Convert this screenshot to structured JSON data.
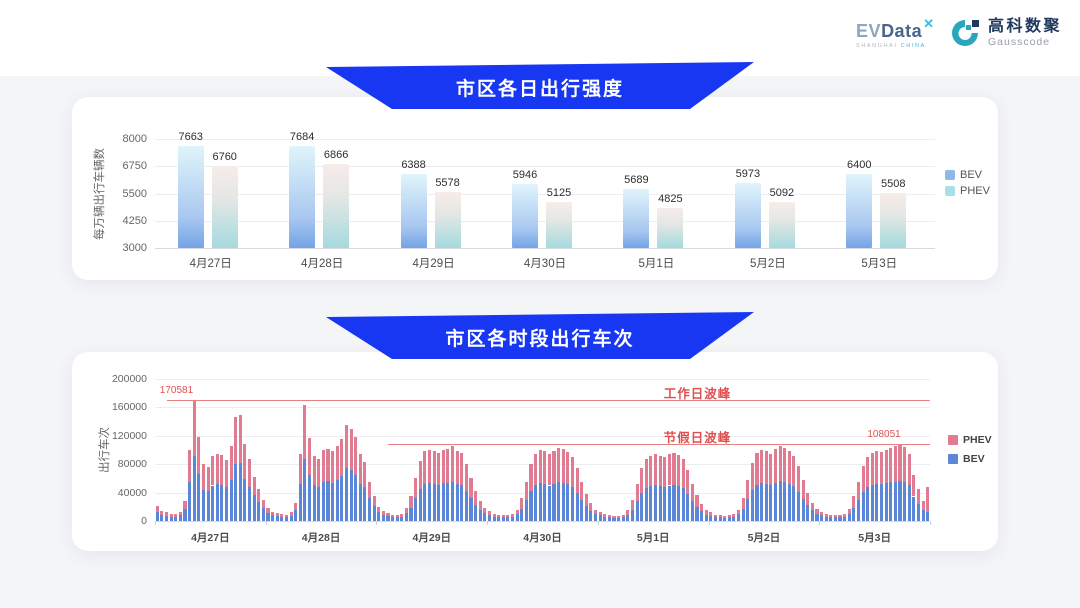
{
  "header": {
    "evdata": {
      "part1": "EV",
      "part2": "Data",
      "sup": "✕",
      "sub_left": "SHANGHAI ",
      "sub_right": "CHINA"
    },
    "gausscode": {
      "cn": "高科数聚",
      "en": "Gausscode"
    }
  },
  "banner_color": "#1737f3",
  "colors": {
    "bev_bar_gradient_top": "#e0f4fb",
    "bev_bar_gradient_bottom": "#74a3e6",
    "phev_bar_gradient_top": "#f7ece9",
    "phev_bar_gradient_bottom": "#a4dade",
    "bev_stacked": "#5c86d7",
    "phev_stacked": "#e07b92",
    "annotation_red": "#e05353",
    "legend_bev_sq": "#8fb7ea",
    "legend_phev_sq": "#aadfe8"
  },
  "chart_data": [
    {
      "type": "bar",
      "title": "市区各日出行强度",
      "ylabel": "每万辆出行车辆数",
      "ylim": [
        3000,
        8000
      ],
      "yticks": [
        8000,
        6750,
        5500,
        4250,
        3000
      ],
      "categories": [
        "4月27日",
        "4月28日",
        "4月29日",
        "4月30日",
        "5月1日",
        "5月2日",
        "5月3日"
      ],
      "series": [
        {
          "name": "BEV",
          "values": [
            7663,
            7684,
            6388,
            5946,
            5689,
            5973,
            6400
          ]
        },
        {
          "name": "PHEV",
          "values": [
            6760,
            6866,
            5578,
            5125,
            4825,
            5092,
            5508
          ]
        }
      ],
      "legend": [
        "BEV",
        "PHEV"
      ],
      "grid": true
    },
    {
      "type": "stacked-bar",
      "title": "市区各时段出行车次",
      "ylabel": "出行车次",
      "ylim": [
        0,
        200000
      ],
      "yticks": [
        200000,
        160000,
        120000,
        80000,
        40000,
        0
      ],
      "categories": [
        "4月27日",
        "4月28日",
        "4月29日",
        "4月30日",
        "5月1日",
        "5月2日",
        "5月3日"
      ],
      "hours_per_day": 24,
      "legend": [
        "PHEV",
        "BEV"
      ],
      "series": [
        {
          "name": "BEV",
          "values": [
            13000,
            8500,
            7500,
            6000,
            6000,
            8000,
            17500,
            55000,
            91000,
            65500,
            44000,
            42000,
            50000,
            52000,
            51000,
            47500,
            58000,
            80500,
            82000,
            59500,
            48500,
            37000,
            27000,
            18000,
            11000,
            8000,
            7000,
            6000,
            5500,
            7500,
            16000,
            52500,
            88000,
            64500,
            50500,
            48500,
            55000,
            56000,
            54000,
            58000,
            63000,
            74000,
            71500,
            65000,
            52000,
            48000,
            33000,
            21000,
            12500,
            8500,
            7000,
            5500,
            5500,
            6000,
            11000,
            19000,
            32000,
            45000,
            52000,
            53000,
            52500,
            51000,
            53000,
            54000,
            55500,
            52500,
            51000,
            42500,
            32000,
            23000,
            16000,
            11000,
            8500,
            6000,
            5500,
            5000,
            5000,
            6000,
            10000,
            17000,
            29000,
            42500,
            50500,
            53000,
            52000,
            50000,
            52500,
            54500,
            53500,
            51500,
            48000,
            40000,
            29000,
            21000,
            14500,
            9500,
            8000,
            6000,
            5000,
            4500,
            4500,
            5500,
            9000,
            16000,
            27500,
            40000,
            46500,
            49000,
            50500,
            49000,
            47500,
            50000,
            51000,
            49500,
            46500,
            38000,
            27500,
            20000,
            14000,
            9000,
            7500,
            5500,
            5000,
            4500,
            5000,
            6000,
            10000,
            17500,
            31000,
            43500,
            51000,
            53000,
            52000,
            50500,
            53500,
            56000,
            54500,
            52000,
            49000,
            41500,
            31000,
            22000,
            15000,
            10000,
            8000,
            6000,
            5500,
            5000,
            5500,
            6000,
            10500,
            19000,
            29000,
            41500,
            48000,
            51000,
            52500,
            51500,
            53000,
            54500,
            55500,
            57000,
            55000,
            50500,
            34500,
            24000,
            15000,
            12000
          ]
        },
        {
          "name": "PHEV",
          "values": [
            8000,
            5500,
            4500,
            4000,
            3500,
            5000,
            10500,
            45000,
            79581,
            53500,
            36000,
            34000,
            41000,
            43000,
            42000,
            38500,
            47000,
            65500,
            67000,
            48500,
            39500,
            25000,
            18000,
            12000,
            7000,
            5000,
            4000,
            3500,
            3500,
            4500,
            10000,
            42500,
            75000,
            52500,
            41500,
            39500,
            45000,
            46000,
            44000,
            47000,
            52000,
            61000,
            58500,
            53000,
            43000,
            35000,
            22000,
            14000,
            7500,
            5500,
            4000,
            3500,
            3000,
            4000,
            7000,
            16000,
            28000,
            40000,
            46000,
            47000,
            46500,
            45000,
            47000,
            48000,
            49500,
            46500,
            45000,
            37500,
            28000,
            19000,
            12000,
            7000,
            5500,
            4000,
            3000,
            3000,
            3000,
            3500,
            6000,
            15000,
            26000,
            37500,
            44500,
            47000,
            46000,
            44000,
            46500,
            48500,
            47500,
            45500,
            42000,
            35000,
            26000,
            17000,
            10500,
            6500,
            5000,
            3500,
            3000,
            3000,
            3000,
            3500,
            6000,
            14000,
            24500,
            35000,
            41500,
            43000,
            44500,
            43000,
            42500,
            44000,
            45000,
            43500,
            41500,
            34000,
            24500,
            16000,
            10000,
            6000,
            4500,
            3500,
            3000,
            3000,
            3000,
            3500,
            6000,
            15500,
            27000,
            38500,
            45000,
            47000,
            46000,
            44500,
            47500,
            50000,
            48500,
            46000,
            43000,
            36500,
            27000,
            18000,
            11000,
            7000,
            5000,
            3500,
            3000,
            3000,
            3000,
            4000,
            6500,
            16000,
            26000,
            36500,
            42000,
            45000,
            46500,
            45500,
            47000,
            48500,
            49500,
            51051,
            49000,
            44500,
            30500,
            21000,
            13000,
            36000
          ]
        }
      ],
      "annotations": {
        "workday_peak": {
          "label": "工作日波峰",
          "value": 170581,
          "value_label": "170581",
          "line_start_frac": 0.015,
          "line_end_frac": 1.0,
          "label_center_frac": 0.7,
          "value_label_frac": 0.032
        },
        "holiday_peak": {
          "label": "节假日波峰",
          "value": 108051,
          "value_label": "108051",
          "line_start_frac": 0.3,
          "line_end_frac": 1.0,
          "label_center_frac": 0.7,
          "value_label_frac": 0.945
        }
      }
    }
  ]
}
